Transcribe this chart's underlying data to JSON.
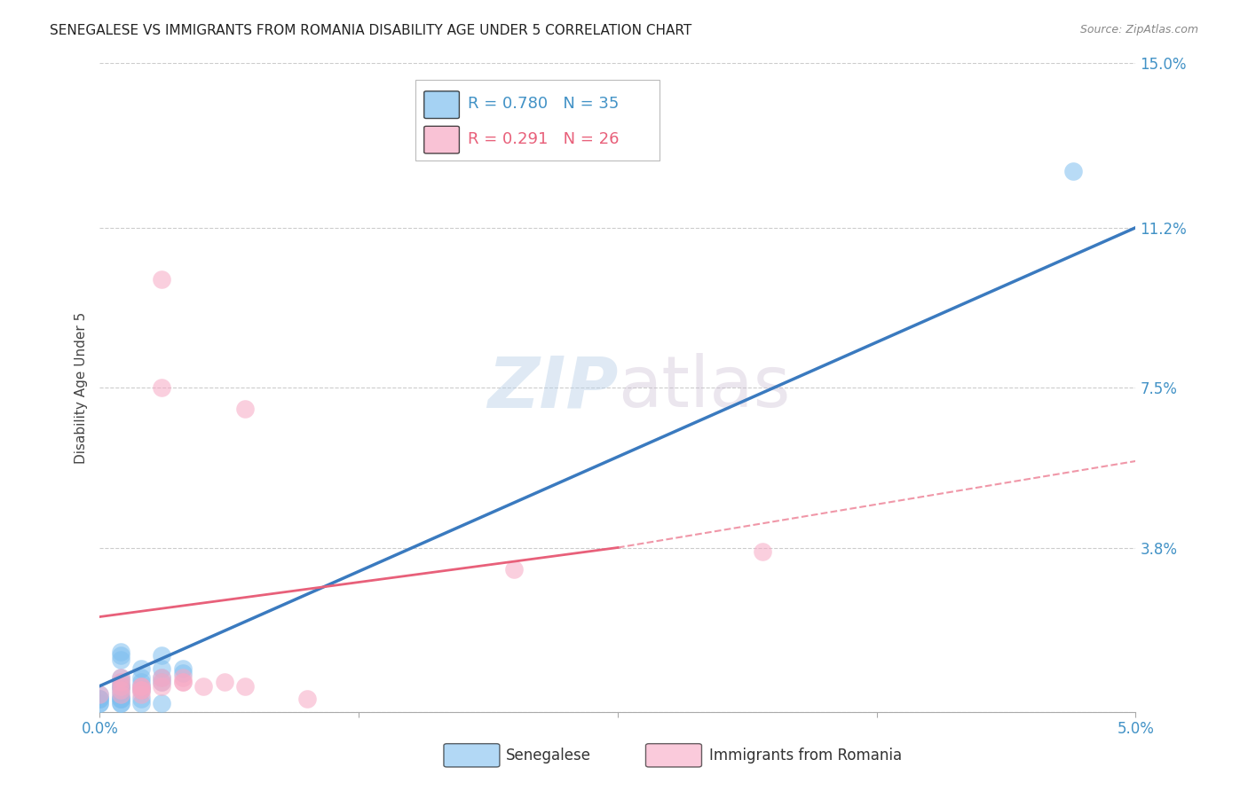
{
  "title": "SENEGALESE VS IMMIGRANTS FROM ROMANIA DISABILITY AGE UNDER 5 CORRELATION CHART",
  "source": "Source: ZipAtlas.com",
  "ylabel": "Disability Age Under 5",
  "xlim": [
    0.0,
    0.05
  ],
  "ylim": [
    0.0,
    0.15
  ],
  "xticks": [
    0.0,
    0.0125,
    0.025,
    0.0375,
    0.05
  ],
  "xtick_labels": [
    "0.0%",
    "",
    "",
    "",
    "5.0%"
  ],
  "ytick_labels_right": [
    "15.0%",
    "11.2%",
    "7.5%",
    "3.8%",
    ""
  ],
  "yticks_right": [
    0.15,
    0.112,
    0.075,
    0.038,
    0.0
  ],
  "watermark_zip": "ZIP",
  "watermark_atlas": "atlas",
  "blue_scatter": [
    [
      0.001,
      0.008
    ],
    [
      0.002,
      0.01
    ],
    [
      0.001,
      0.005
    ],
    [
      0.001,
      0.007
    ],
    [
      0.002,
      0.007
    ],
    [
      0.001,
      0.006
    ],
    [
      0.003,
      0.007
    ],
    [
      0.001,
      0.004
    ],
    [
      0.002,
      0.005
    ],
    [
      0.002,
      0.008
    ],
    [
      0.003,
      0.008
    ],
    [
      0.001,
      0.003
    ],
    [
      0.001,
      0.006
    ],
    [
      0.002,
      0.006
    ],
    [
      0.003,
      0.01
    ],
    [
      0.004,
      0.01
    ],
    [
      0.001,
      0.013
    ],
    [
      0.003,
      0.013
    ],
    [
      0.001,
      0.014
    ],
    [
      0.004,
      0.009
    ],
    [
      0.001,
      0.012
    ],
    [
      0.001,
      0.002
    ],
    [
      0.001,
      0.003
    ],
    [
      0.0,
      0.003
    ],
    [
      0.0,
      0.004
    ],
    [
      0.0,
      0.002
    ],
    [
      0.0,
      0.003
    ],
    [
      0.001,
      0.003
    ],
    [
      0.001,
      0.002
    ],
    [
      0.0,
      0.002
    ],
    [
      0.0,
      0.003
    ],
    [
      0.002,
      0.003
    ],
    [
      0.002,
      0.002
    ],
    [
      0.003,
      0.002
    ],
    [
      0.047,
      0.125
    ]
  ],
  "pink_scatter": [
    [
      0.001,
      0.008
    ],
    [
      0.001,
      0.007
    ],
    [
      0.001,
      0.006
    ],
    [
      0.002,
      0.005
    ],
    [
      0.001,
      0.005
    ],
    [
      0.002,
      0.006
    ],
    [
      0.001,
      0.004
    ],
    [
      0.0,
      0.004
    ],
    [
      0.002,
      0.004
    ],
    [
      0.002,
      0.005
    ],
    [
      0.002,
      0.006
    ],
    [
      0.003,
      0.006
    ],
    [
      0.003,
      0.007
    ],
    [
      0.004,
      0.007
    ],
    [
      0.003,
      0.008
    ],
    [
      0.004,
      0.008
    ],
    [
      0.004,
      0.007
    ],
    [
      0.005,
      0.006
    ],
    [
      0.006,
      0.007
    ],
    [
      0.007,
      0.006
    ],
    [
      0.01,
      0.003
    ],
    [
      0.003,
      0.075
    ],
    [
      0.003,
      0.1
    ],
    [
      0.007,
      0.07
    ],
    [
      0.032,
      0.037
    ],
    [
      0.02,
      0.033
    ]
  ],
  "blue_line": {
    "x": [
      0.0,
      0.05
    ],
    "y": [
      0.006,
      0.112
    ]
  },
  "pink_line_solid": {
    "x": [
      0.0,
      0.025
    ],
    "y": [
      0.022,
      0.038
    ]
  },
  "pink_line_dashed": {
    "x": [
      0.025,
      0.05
    ],
    "y": [
      0.038,
      0.058
    ]
  },
  "grid_color": "#cccccc",
  "background_color": "#ffffff",
  "blue_color": "#7fbfef",
  "pink_color": "#f7a8c4",
  "blue_line_color": "#3a7abf",
  "pink_line_color": "#e8607a",
  "blue_text_color": "#4292c6",
  "pink_text_color": "#e8607a",
  "title_fontsize": 11,
  "axis_label_fontsize": 11,
  "tick_fontsize": 12,
  "legend_blue_text": "R = 0.780   N = 35",
  "legend_pink_text": "R = 0.291   N = 26",
  "bottom_legend_blue": "Senegalese",
  "bottom_legend_pink": "Immigrants from Romania"
}
